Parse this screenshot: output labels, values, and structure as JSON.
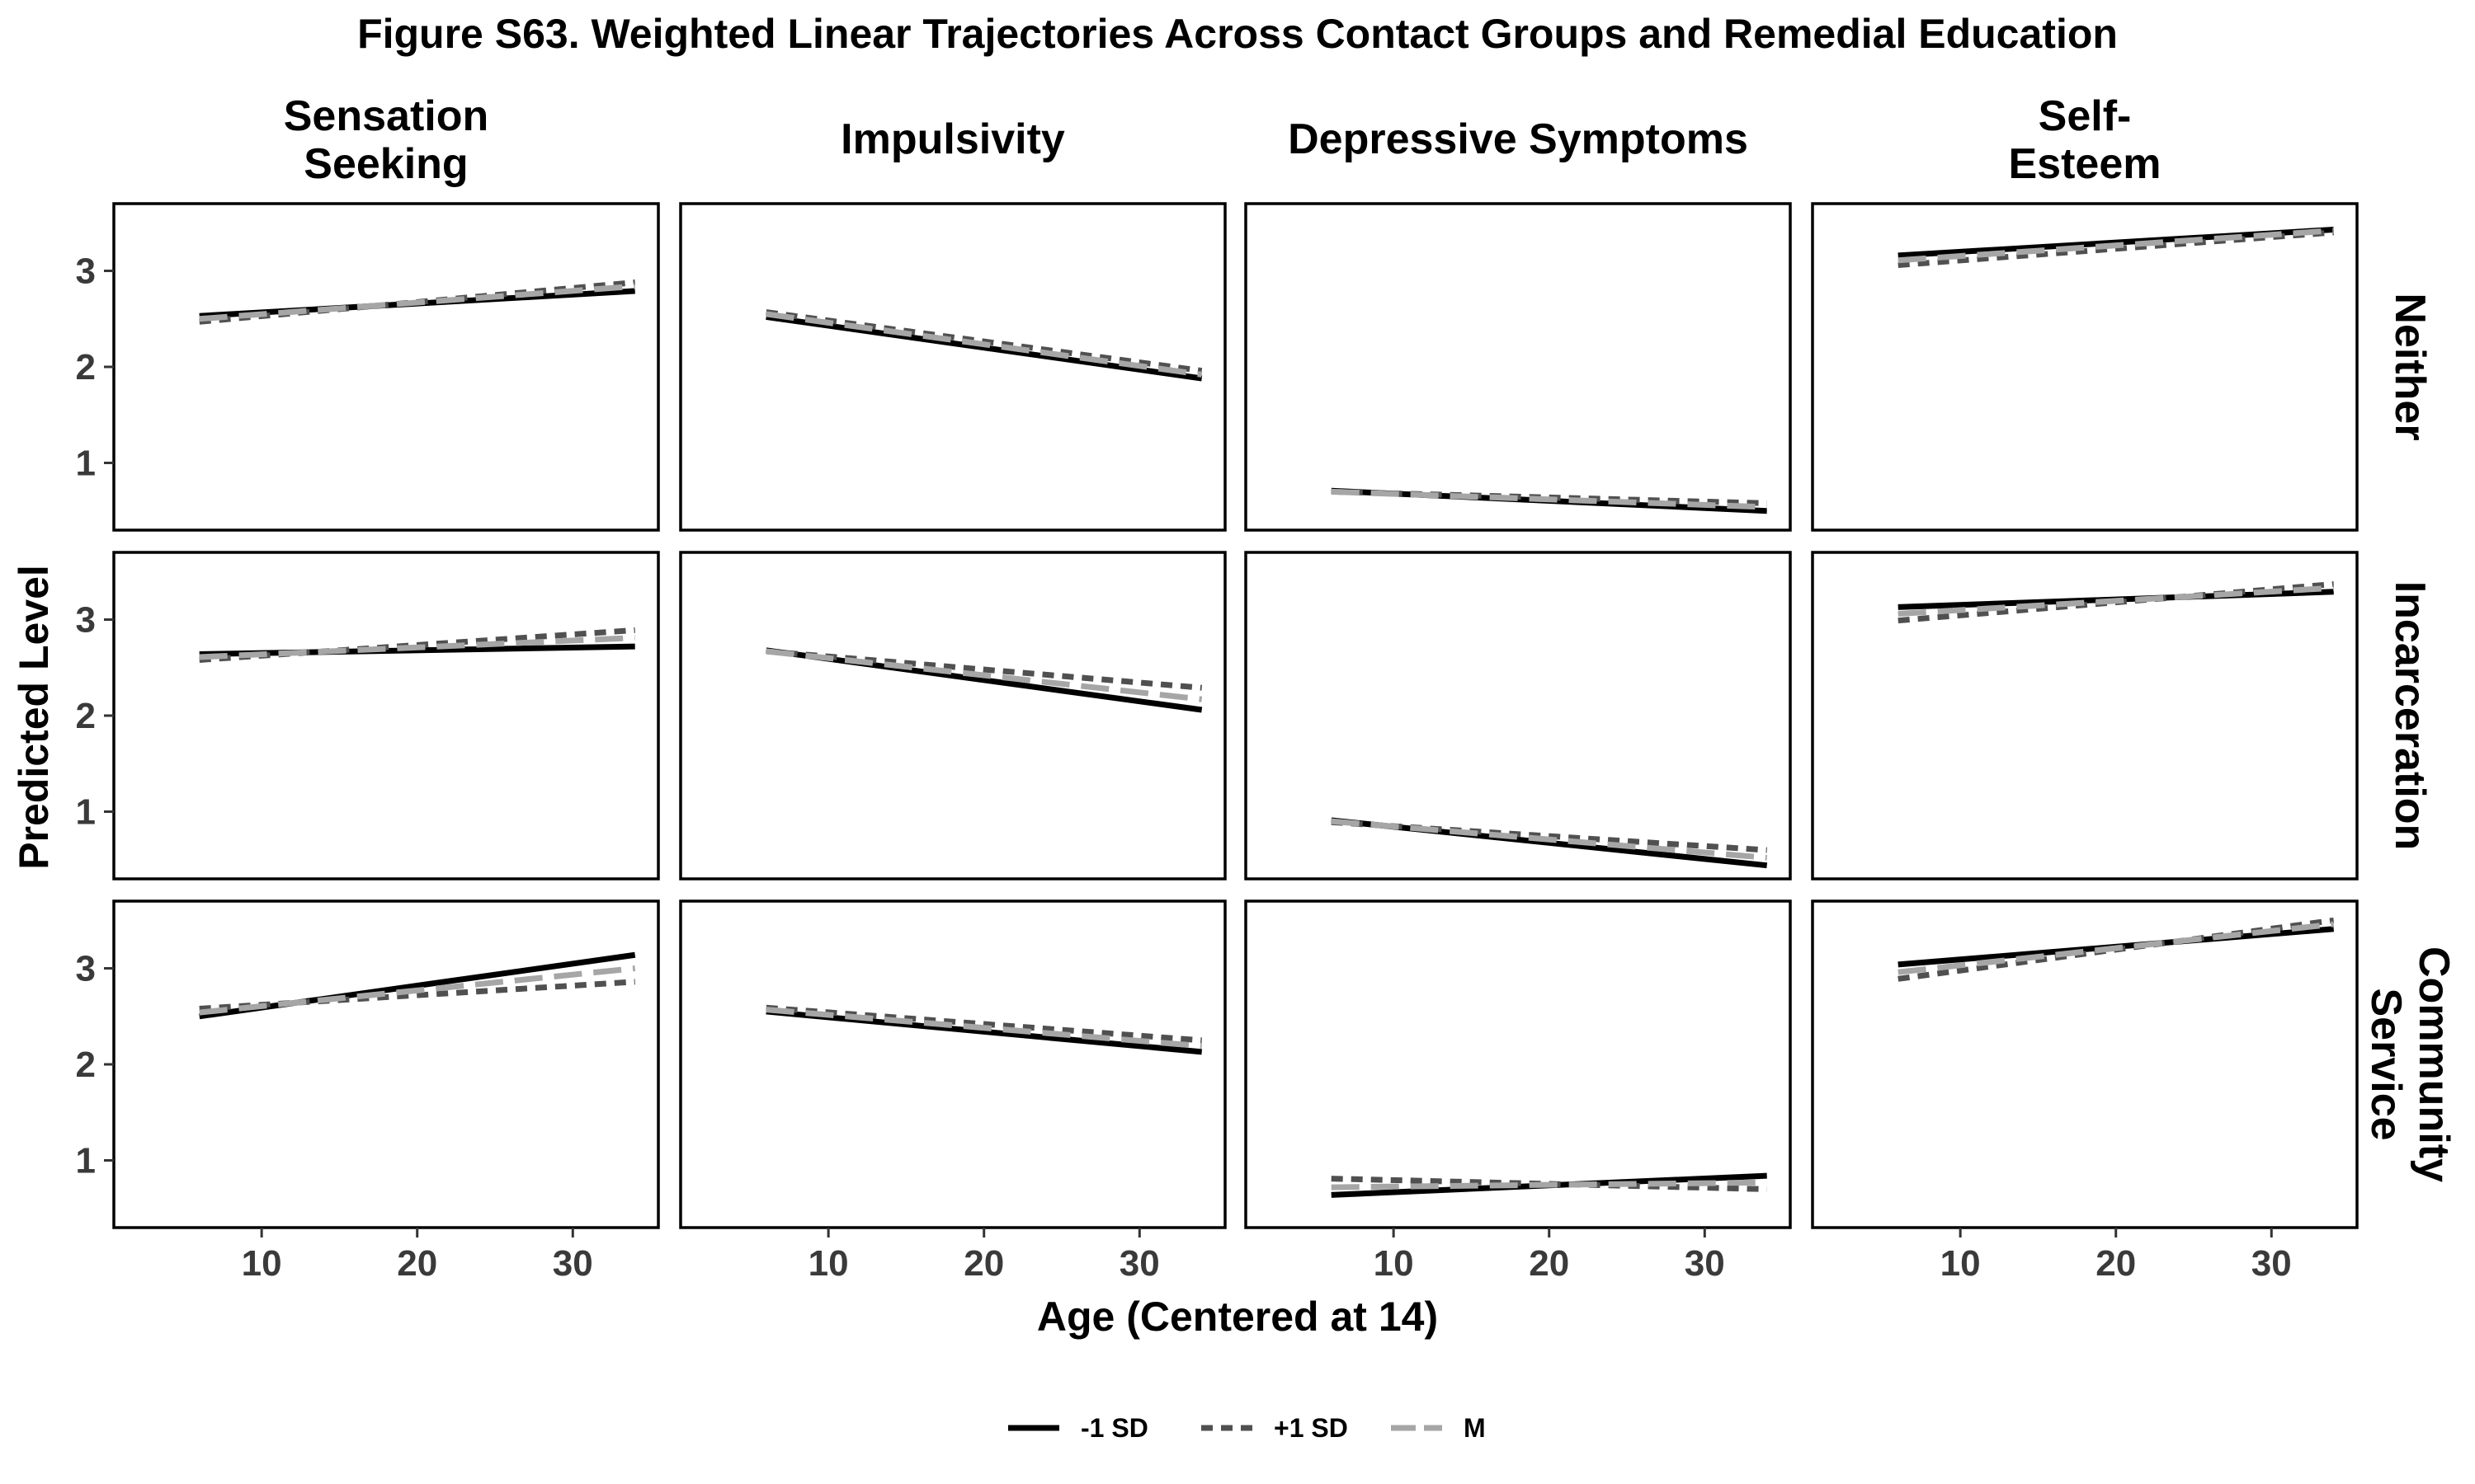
{
  "title": "Figure S63. Weighted Linear Trajectories Across Contact Groups and Remedial Education",
  "xlabel": "Age (Centered at 14)",
  "ylabel": "Predicted Level",
  "colors": {
    "m1sd": "#000000",
    "p1sd": "#505050",
    "mean": "#a6a6a6",
    "frame": "#000000",
    "tick_text": "#3a3a3a"
  },
  "legend": [
    {
      "label": "-1 SD",
      "key": "m1sd",
      "style": "solid"
    },
    {
      "label": "+1 SD",
      "key": "p1sd",
      "style": "dashed"
    },
    {
      "label": "M",
      "key": "mean",
      "style": "longdash"
    }
  ],
  "chart_data": {
    "type": "line",
    "facet_columns": [
      {
        "key": "ss",
        "label": "Sensation\nSeeking"
      },
      {
        "key": "imp",
        "label": "Impulsivity"
      },
      {
        "key": "dep",
        "label": "Depressive Symptoms"
      },
      {
        "key": "se",
        "label": "Self-\nEsteem"
      }
    ],
    "facet_rows": [
      {
        "key": "neither",
        "label": "Neither"
      },
      {
        "key": "incarc",
        "label": "Incarceration"
      },
      {
        "key": "comm",
        "label": "Community\nService"
      }
    ],
    "x": [
      6,
      34
    ],
    "xlim": [
      0.5,
      35.5
    ],
    "ylim": [
      0.3,
      3.7
    ],
    "x_ticks": [
      10,
      20,
      30
    ],
    "y_ticks": [
      1,
      2,
      3
    ],
    "series_names": [
      "-1 SD",
      "+1 SD",
      "M"
    ],
    "panels": [
      {
        "row": "neither",
        "col": "ss",
        "series": {
          "m1sd": [
            2.53,
            2.79
          ],
          "p1sd": [
            2.47,
            2.88
          ],
          "mean": [
            2.5,
            2.84
          ]
        }
      },
      {
        "row": "neither",
        "col": "imp",
        "series": {
          "m1sd": [
            2.52,
            1.88
          ],
          "p1sd": [
            2.57,
            1.96
          ],
          "mean": [
            2.55,
            1.92
          ]
        }
      },
      {
        "row": "neither",
        "col": "dep",
        "series": {
          "m1sd": [
            0.71,
            0.5
          ],
          "p1sd": [
            0.7,
            0.58
          ],
          "mean": [
            0.7,
            0.54
          ]
        }
      },
      {
        "row": "neither",
        "col": "se",
        "series": {
          "m1sd": [
            3.16,
            3.43
          ],
          "p1sd": [
            3.06,
            3.4
          ],
          "mean": [
            3.11,
            3.42
          ]
        }
      },
      {
        "row": "incarc",
        "col": "ss",
        "series": {
          "m1sd": [
            2.64,
            2.72
          ],
          "p1sd": [
            2.58,
            2.89
          ],
          "mean": [
            2.61,
            2.81
          ]
        }
      },
      {
        "row": "incarc",
        "col": "imp",
        "series": {
          "m1sd": [
            2.68,
            2.06
          ],
          "p1sd": [
            2.67,
            2.29
          ],
          "mean": [
            2.67,
            2.17
          ]
        }
      },
      {
        "row": "incarc",
        "col": "dep",
        "series": {
          "m1sd": [
            0.91,
            0.44
          ],
          "p1sd": [
            0.89,
            0.6
          ],
          "mean": [
            0.9,
            0.52
          ]
        }
      },
      {
        "row": "incarc",
        "col": "se",
        "series": {
          "m1sd": [
            3.13,
            3.29
          ],
          "p1sd": [
            2.99,
            3.37
          ],
          "mean": [
            3.06,
            3.33
          ]
        }
      },
      {
        "row": "comm",
        "col": "ss",
        "series": {
          "m1sd": [
            2.5,
            3.14
          ],
          "p1sd": [
            2.58,
            2.86
          ],
          "mean": [
            2.54,
            3.0
          ]
        }
      },
      {
        "row": "comm",
        "col": "imp",
        "series": {
          "m1sd": [
            2.55,
            2.13
          ],
          "p1sd": [
            2.59,
            2.25
          ],
          "mean": [
            2.57,
            2.19
          ]
        }
      },
      {
        "row": "comm",
        "col": "dep",
        "series": {
          "m1sd": [
            0.64,
            0.84
          ],
          "p1sd": [
            0.81,
            0.7
          ],
          "mean": [
            0.72,
            0.77
          ]
        }
      },
      {
        "row": "comm",
        "col": "se",
        "series": {
          "m1sd": [
            3.04,
            3.41
          ],
          "p1sd": [
            2.89,
            3.5
          ],
          "mean": [
            2.96,
            3.46
          ]
        }
      }
    ]
  }
}
